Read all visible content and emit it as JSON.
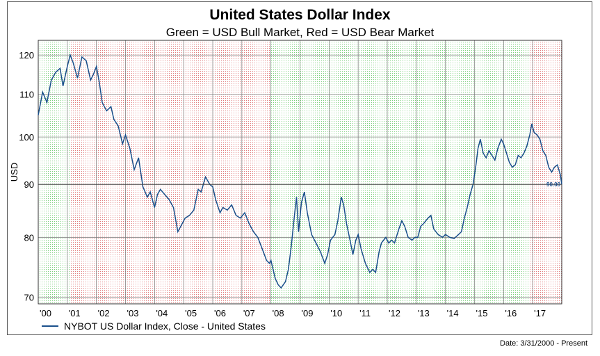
{
  "chart_data": {
    "type": "line",
    "title": "United States Dollar Index",
    "subtitle": "Green = USD Bull Market, Red = USD Bear Market",
    "ylabel": "USD",
    "xlabel": "",
    "y_scale": "log",
    "ylim": [
      69,
      124
    ],
    "y_ticks": [
      70,
      80,
      90,
      100,
      110,
      120
    ],
    "x_range": [
      2000.0,
      2018.0
    ],
    "x_tick_labels": [
      {
        "label": "'00",
        "x": 2000
      },
      {
        "label": "'01",
        "x": 2001
      },
      {
        "label": "'02",
        "x": 2002
      },
      {
        "label": "'03",
        "x": 2003
      },
      {
        "label": "'04",
        "x": 2004
      },
      {
        "label": "'05",
        "x": 2005
      },
      {
        "label": "'06",
        "x": 2006
      },
      {
        "label": "'07",
        "x": 2007
      },
      {
        "label": "'08",
        "x": 2008
      },
      {
        "label": "'09",
        "x": 2009
      },
      {
        "label": "'10",
        "x": 2010
      },
      {
        "label": "'11",
        "x": 2011
      },
      {
        "label": "'12",
        "x": 2012
      },
      {
        "label": "'13",
        "x": 2013
      },
      {
        "label": "'14",
        "x": 2014
      },
      {
        "label": "'15",
        "x": 2015
      },
      {
        "label": "'16",
        "x": 2016
      },
      {
        "label": "'17",
        "x": 2017
      }
    ],
    "grid": true,
    "regimes": [
      {
        "market": "bull",
        "start": 2000.0,
        "end": 2001.1
      },
      {
        "market": "bear",
        "start": 2001.1,
        "end": 2008.0
      },
      {
        "market": "bull",
        "start": 2008.0,
        "end": 2016.9
      },
      {
        "market": "bear",
        "start": 2016.9,
        "end": 2018.0
      }
    ],
    "last_value_label": "90.00",
    "last_value": 90.0,
    "series": [
      {
        "name": "NYBOT US Dollar Index, Close - United States",
        "color": "#1a4f8b",
        "points": [
          [
            2000.0,
            105.0
          ],
          [
            2000.15,
            110.5
          ],
          [
            2000.3,
            108.0
          ],
          [
            2000.45,
            113.5
          ],
          [
            2000.6,
            115.5
          ],
          [
            2000.75,
            116.5
          ],
          [
            2000.85,
            112.0
          ],
          [
            2001.0,
            117.0
          ],
          [
            2001.1,
            120.0
          ],
          [
            2001.2,
            118.0
          ],
          [
            2001.35,
            114.0
          ],
          [
            2001.5,
            119.5
          ],
          [
            2001.65,
            118.5
          ],
          [
            2001.8,
            113.5
          ],
          [
            2001.9,
            115.0
          ],
          [
            2002.0,
            117.0
          ],
          [
            2002.1,
            113.0
          ],
          [
            2002.2,
            108.0
          ],
          [
            2002.35,
            106.0
          ],
          [
            2002.5,
            107.0
          ],
          [
            2002.6,
            104.0
          ],
          [
            2002.75,
            102.5
          ],
          [
            2002.9,
            98.5
          ],
          [
            2003.0,
            100.5
          ],
          [
            2003.15,
            97.5
          ],
          [
            2003.3,
            93.0
          ],
          [
            2003.45,
            95.5
          ],
          [
            2003.6,
            89.5
          ],
          [
            2003.75,
            87.5
          ],
          [
            2003.85,
            88.5
          ],
          [
            2004.0,
            85.5
          ],
          [
            2004.1,
            88.0
          ],
          [
            2004.2,
            89.0
          ],
          [
            2004.35,
            88.0
          ],
          [
            2004.5,
            87.0
          ],
          [
            2004.65,
            85.5
          ],
          [
            2004.8,
            81.0
          ],
          [
            2004.95,
            82.5
          ],
          [
            2005.05,
            83.5
          ],
          [
            2005.2,
            84.0
          ],
          [
            2005.35,
            85.0
          ],
          [
            2005.5,
            89.0
          ],
          [
            2005.6,
            88.5
          ],
          [
            2005.75,
            91.5
          ],
          [
            2005.9,
            90.0
          ],
          [
            2006.0,
            89.5
          ],
          [
            2006.1,
            87.0
          ],
          [
            2006.25,
            84.5
          ],
          [
            2006.35,
            85.5
          ],
          [
            2006.5,
            85.0
          ],
          [
            2006.65,
            86.0
          ],
          [
            2006.8,
            84.0
          ],
          [
            2006.95,
            83.5
          ],
          [
            2007.1,
            84.5
          ],
          [
            2007.25,
            82.5
          ],
          [
            2007.4,
            81.0
          ],
          [
            2007.55,
            80.0
          ],
          [
            2007.7,
            78.0
          ],
          [
            2007.85,
            76.0
          ],
          [
            2007.95,
            75.5
          ],
          [
            2008.0,
            76.0
          ],
          [
            2008.15,
            73.0
          ],
          [
            2008.25,
            72.0
          ],
          [
            2008.35,
            71.5
          ],
          [
            2008.5,
            72.5
          ],
          [
            2008.6,
            74.5
          ],
          [
            2008.7,
            78.5
          ],
          [
            2008.8,
            83.5
          ],
          [
            2008.88,
            87.5
          ],
          [
            2008.95,
            81.0
          ],
          [
            2009.05,
            86.5
          ],
          [
            2009.15,
            88.5
          ],
          [
            2009.25,
            84.5
          ],
          [
            2009.4,
            80.5
          ],
          [
            2009.55,
            79.0
          ],
          [
            2009.7,
            77.5
          ],
          [
            2009.85,
            75.5
          ],
          [
            2009.95,
            77.0
          ],
          [
            2010.05,
            79.5
          ],
          [
            2010.2,
            80.5
          ],
          [
            2010.3,
            83.0
          ],
          [
            2010.42,
            87.5
          ],
          [
            2010.5,
            86.0
          ],
          [
            2010.6,
            82.5
          ],
          [
            2010.7,
            80.0
          ],
          [
            2010.82,
            77.0
          ],
          [
            2010.92,
            79.5
          ],
          [
            2011.0,
            80.5
          ],
          [
            2011.1,
            78.0
          ],
          [
            2011.25,
            75.5
          ],
          [
            2011.4,
            74.0
          ],
          [
            2011.5,
            74.5
          ],
          [
            2011.6,
            74.0
          ],
          [
            2011.72,
            77.5
          ],
          [
            2011.8,
            79.0
          ],
          [
            2011.95,
            80.0
          ],
          [
            2012.05,
            79.0
          ],
          [
            2012.15,
            79.5
          ],
          [
            2012.25,
            79.0
          ],
          [
            2012.4,
            81.5
          ],
          [
            2012.5,
            83.0
          ],
          [
            2012.6,
            82.0
          ],
          [
            2012.72,
            80.0
          ],
          [
            2012.85,
            79.5
          ],
          [
            2012.95,
            80.0
          ],
          [
            2013.05,
            80.0
          ],
          [
            2013.15,
            82.0
          ],
          [
            2013.25,
            82.5
          ],
          [
            2013.4,
            83.5
          ],
          [
            2013.5,
            84.0
          ],
          [
            2013.6,
            81.5
          ],
          [
            2013.75,
            80.5
          ],
          [
            2013.9,
            80.0
          ],
          [
            2014.0,
            80.5
          ],
          [
            2014.15,
            80.0
          ],
          [
            2014.3,
            79.8
          ],
          [
            2014.45,
            80.5
          ],
          [
            2014.55,
            81.0
          ],
          [
            2014.65,
            83.5
          ],
          [
            2014.75,
            85.5
          ],
          [
            2014.85,
            88.0
          ],
          [
            2014.95,
            90.0
          ],
          [
            2015.05,
            94.0
          ],
          [
            2015.12,
            97.5
          ],
          [
            2015.2,
            99.5
          ],
          [
            2015.3,
            96.5
          ],
          [
            2015.4,
            95.5
          ],
          [
            2015.5,
            97.0
          ],
          [
            2015.6,
            96.0
          ],
          [
            2015.7,
            95.0
          ],
          [
            2015.8,
            97.5
          ],
          [
            2015.92,
            99.5
          ],
          [
            2016.0,
            98.5
          ],
          [
            2016.1,
            96.5
          ],
          [
            2016.2,
            94.5
          ],
          [
            2016.3,
            93.5
          ],
          [
            2016.4,
            94.0
          ],
          [
            2016.5,
            96.0
          ],
          [
            2016.6,
            95.5
          ],
          [
            2016.7,
            96.5
          ],
          [
            2016.8,
            98.0
          ],
          [
            2016.9,
            100.5
          ],
          [
            2016.97,
            103.0
          ],
          [
            2017.05,
            101.0
          ],
          [
            2017.15,
            100.5
          ],
          [
            2017.25,
            99.5
          ],
          [
            2017.35,
            97.0
          ],
          [
            2017.45,
            96.0
          ],
          [
            2017.55,
            93.5
          ],
          [
            2017.65,
            92.5
          ],
          [
            2017.75,
            93.5
          ],
          [
            2017.85,
            94.0
          ],
          [
            2017.95,
            92.0
          ],
          [
            2018.0,
            90.0
          ]
        ]
      }
    ]
  },
  "legend_label": "NYBOT US Dollar Index, Close - United States",
  "source_note": "Date: 3/31/2000 - Present",
  "colors": {
    "line": "#1a4f8b",
    "bull": "#7ccf7c",
    "bear": "#e07a7a",
    "grid": "#7a7a7a",
    "reference_line": "#444444"
  }
}
